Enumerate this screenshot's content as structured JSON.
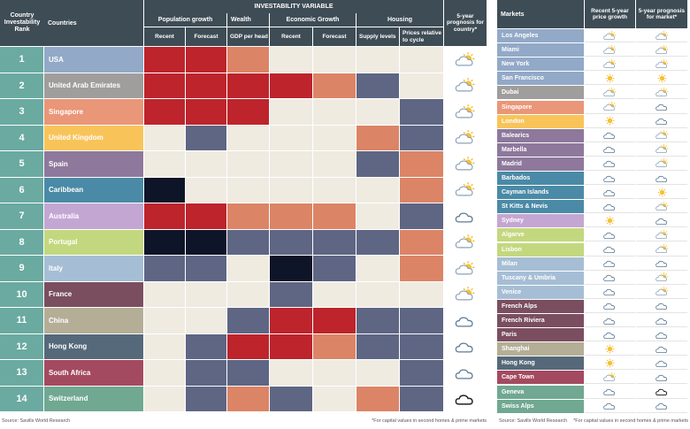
{
  "left": {
    "headers": {
      "rank": "Country Investability Rank",
      "countries": "Countries",
      "investability_variable": "INVESTABILITY VARIABLE",
      "groups": {
        "population_growth": "Population growth",
        "wealth": "Wealth",
        "economic_growth": "Economic Growth",
        "housing": "Housing"
      },
      "prognosis": "5-year prognosis for country*",
      "subcols": [
        "Recent",
        "Forecast",
        "GDP per head",
        "Recent",
        "Forecast",
        "Supply levels",
        "Prices relative to cycle"
      ]
    },
    "footer_source": "Source: Savills World Research",
    "footer_note": "*For capital values in second homes & prime markets"
  },
  "right": {
    "headers": {
      "markets": "Markets",
      "recent": "Recent 5-year price growth",
      "prognosis": "5-year prognosis for market*"
    },
    "footer_source": "Source: Savills World Research",
    "footer_note": "*For capital values in second homes & prime markets"
  },
  "colors": {
    "header": "#3e4c55",
    "level_red": "#bd242c",
    "level_salmon": "#dc8466",
    "level_beige": "#efebe1",
    "level_slate": "#5e6684",
    "level_navy": "#0f1528"
  },
  "chart_data": [
    {
      "type": "table",
      "title": "",
      "columns": [
        "Country Investability Rank",
        "Countries",
        "Population growth Recent",
        "Population growth Forecast",
        "Wealth GDP per head",
        "Economic Growth Recent",
        "Economic Growth Forecast",
        "Housing Supply levels",
        "Housing Prices relative to cycle",
        "5-year prognosis for country*"
      ],
      "rows": [
        {
          "rank": "1",
          "name": "USA",
          "color": "#92a9c8",
          "cells": [
            "red",
            "red",
            "salmon",
            "beige",
            "beige",
            "beige",
            "beige"
          ],
          "prognosis": "sun-cloud"
        },
        {
          "rank": "2",
          "name": "United Arab Emirates",
          "color": "#a09e9d",
          "cells": [
            "red",
            "red",
            "red",
            "red",
            "salmon",
            "slate",
            "beige"
          ],
          "prognosis": "sun-cloud"
        },
        {
          "rank": "3",
          "name": "Singapore",
          "color": "#ea9678",
          "cells": [
            "red",
            "red",
            "red",
            "beige",
            "beige",
            "beige",
            "slate"
          ],
          "prognosis": "sun-cloud"
        },
        {
          "rank": "4",
          "name": "United Kingdom",
          "color": "#f8c45a",
          "cells": [
            "beige",
            "slate",
            "beige",
            "beige",
            "beige",
            "salmon",
            "slate"
          ],
          "prognosis": "sun-cloud"
        },
        {
          "rank": "5",
          "name": "Spain",
          "color": "#8e789c",
          "cells": [
            "beige",
            "beige",
            "beige",
            "beige",
            "beige",
            "slate",
            "salmon"
          ],
          "prognosis": "sun-cloud"
        },
        {
          "rank": "6",
          "name": "Caribbean",
          "color": "#4a8aa6",
          "cells": [
            "navy",
            "beige",
            "beige",
            "beige",
            "beige",
            "beige",
            "salmon"
          ],
          "prognosis": "sun-cloud"
        },
        {
          "rank": "7",
          "name": "Australia",
          "color": "#c4a6d2",
          "cells": [
            "red",
            "red",
            "salmon",
            "salmon",
            "salmon",
            "beige",
            "slate"
          ],
          "prognosis": "cloud"
        },
        {
          "rank": "8",
          "name": "Portugal",
          "color": "#c3d87e",
          "cells": [
            "navy",
            "navy",
            "slate",
            "slate",
            "slate",
            "slate",
            "salmon"
          ],
          "prognosis": "sun-cloud"
        },
        {
          "rank": "9",
          "name": "Italy",
          "color": "#a6bed5",
          "cells": [
            "slate",
            "slate",
            "beige",
            "navy",
            "slate",
            "beige",
            "salmon"
          ],
          "prognosis": "sun-cloud"
        },
        {
          "rank": "10",
          "name": "France",
          "color": "#7a4e5f",
          "cells": [
            "beige",
            "beige",
            "beige",
            "slate",
            "beige",
            "beige",
            "beige"
          ],
          "prognosis": "sun-cloud"
        },
        {
          "rank": "11",
          "name": "China",
          "color": "#b4ae97",
          "cells": [
            "beige",
            "beige",
            "slate",
            "red",
            "red",
            "slate",
            "slate"
          ],
          "prognosis": "cloud"
        },
        {
          "rank": "12",
          "name": "Hong Kong",
          "color": "#56697a",
          "cells": [
            "beige",
            "slate",
            "red",
            "red",
            "salmon",
            "slate",
            "slate"
          ],
          "prognosis": "cloud"
        },
        {
          "rank": "13",
          "name": "South Africa",
          "color": "#a44a60",
          "cells": [
            "beige",
            "slate",
            "slate",
            "beige",
            "beige",
            "beige",
            "slate"
          ],
          "prognosis": "cloud"
        },
        {
          "rank": "14",
          "name": "Switzerland",
          "color": "#70a892",
          "cells": [
            "beige",
            "slate",
            "salmon",
            "slate",
            "beige",
            "salmon",
            "slate"
          ],
          "prognosis": "dark-cloud"
        }
      ]
    },
    {
      "type": "table",
      "title": "",
      "columns": [
        "Markets",
        "Recent 5-year price growth",
        "5-year prognosis for market*"
      ],
      "rows": [
        {
          "name": "Los Angeles",
          "color": "#92a9c8",
          "recent": "sun-cloud",
          "prognosis": "sun-cloud"
        },
        {
          "name": "Miami",
          "color": "#92a9c8",
          "recent": "sun-cloud",
          "prognosis": "sun-cloud"
        },
        {
          "name": "New York",
          "color": "#92a9c8",
          "recent": "sun-cloud",
          "prognosis": "sun-cloud"
        },
        {
          "name": "San Francisco",
          "color": "#92a9c8",
          "recent": "sun",
          "prognosis": "sun"
        },
        {
          "name": "Dubai",
          "color": "#a09e9d",
          "recent": "sun-cloud",
          "prognosis": "sun-cloud"
        },
        {
          "name": "Singapore",
          "color": "#ea9678",
          "recent": "sun-cloud",
          "prognosis": "cloud"
        },
        {
          "name": "London",
          "color": "#f8c45a",
          "recent": "sun",
          "prognosis": "cloud"
        },
        {
          "name": "Balearics",
          "color": "#8e789c",
          "recent": "cloud",
          "prognosis": "sun-cloud"
        },
        {
          "name": "Marbella",
          "color": "#8e789c",
          "recent": "cloud",
          "prognosis": "sun-cloud"
        },
        {
          "name": "Madrid",
          "color": "#8e789c",
          "recent": "cloud",
          "prognosis": "sun-cloud"
        },
        {
          "name": "Barbados",
          "color": "#4a8aa6",
          "recent": "cloud",
          "prognosis": "cloud"
        },
        {
          "name": "Cayman Islands",
          "color": "#4a8aa6",
          "recent": "cloud",
          "prognosis": "sun"
        },
        {
          "name": "St Kitts & Nevis",
          "color": "#4a8aa6",
          "recent": "cloud",
          "prognosis": "sun-cloud"
        },
        {
          "name": "Sydney",
          "color": "#c4a6d2",
          "recent": "sun",
          "prognosis": "cloud"
        },
        {
          "name": "Algarve",
          "color": "#c3d87e",
          "recent": "cloud",
          "prognosis": "sun-cloud"
        },
        {
          "name": "Lisbon",
          "color": "#c3d87e",
          "recent": "cloud",
          "prognosis": "sun-cloud"
        },
        {
          "name": "Milan",
          "color": "#a6bed5",
          "recent": "cloud",
          "prognosis": "cloud"
        },
        {
          "name": "Tuscany & Umbria",
          "color": "#a6bed5",
          "recent": "cloud",
          "prognosis": "sun-cloud"
        },
        {
          "name": "Venice",
          "color": "#a6bed5",
          "recent": "cloud",
          "prognosis": "sun-cloud"
        },
        {
          "name": "French Alps",
          "color": "#7a4e5f",
          "recent": "cloud",
          "prognosis": "cloud"
        },
        {
          "name": "French Riviera",
          "color": "#7a4e5f",
          "recent": "cloud",
          "prognosis": "cloud"
        },
        {
          "name": "Paris",
          "color": "#7a4e5f",
          "recent": "cloud",
          "prognosis": "cloud"
        },
        {
          "name": "Shanghai",
          "color": "#b4ae97",
          "recent": "sun",
          "prognosis": "cloud"
        },
        {
          "name": "Hong Kong",
          "color": "#56697a",
          "recent": "sun",
          "prognosis": "cloud"
        },
        {
          "name": "Cape Town",
          "color": "#a44a60",
          "recent": "sun-cloud",
          "prognosis": "cloud"
        },
        {
          "name": "Geneva",
          "color": "#70a892",
          "recent": "cloud",
          "prognosis": "dark-cloud"
        },
        {
          "name": "Swiss Alps",
          "color": "#70a892",
          "recent": "cloud",
          "prognosis": "cloud"
        }
      ]
    }
  ]
}
